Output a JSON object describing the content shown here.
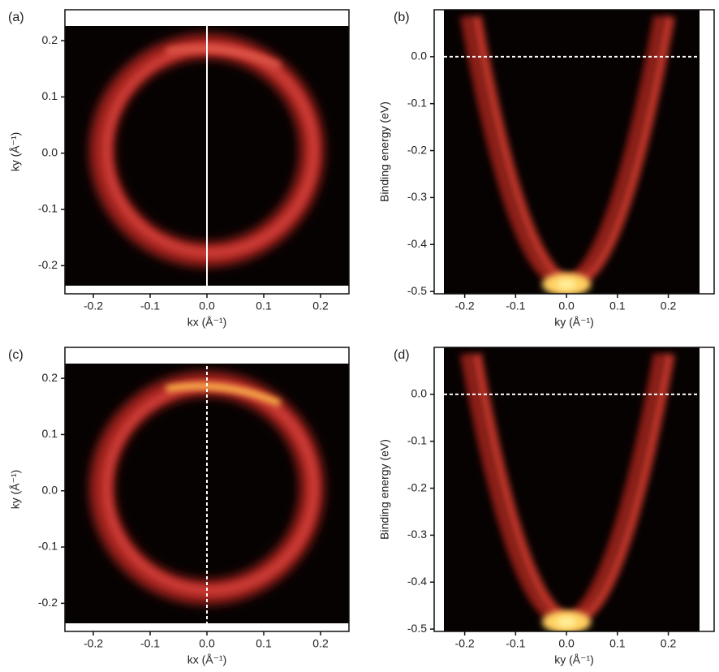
{
  "chart_data": [
    {
      "type": "map",
      "panel": "(a)",
      "xlabel": "kx (Å⁻¹)",
      "ylabel": "ky (Å⁻¹)",
      "xlim": [
        -0.25,
        0.25
      ],
      "ylim": [
        -0.25,
        0.255
      ],
      "xticks": [
        -0.2,
        -0.1,
        {
          "value": 0,
          "label": "0.0"
        },
        0.1,
        0.2
      ],
      "yticks": [
        -0.2,
        -0.1,
        {
          "value": 0,
          "label": "0.0"
        },
        0.1,
        0.2
      ],
      "ref_line": {
        "axis": "x",
        "value": 0,
        "style": "solid"
      }
    },
    {
      "type": "dispersion",
      "panel": "(b)",
      "xlabel": "ky (Å⁻¹)",
      "ylabel": "Binding energy (eV)",
      "xlim": [
        -0.26,
        0.29
      ],
      "ylim": [
        -0.505,
        0.1
      ],
      "xticks": [
        -0.2,
        -0.1,
        {
          "value": 0,
          "label": "0.0"
        },
        0.1,
        0.2
      ],
      "yticks": [
        -0.5,
        -0.4,
        -0.3,
        -0.2,
        -0.1,
        {
          "value": 0,
          "label": "0.0"
        }
      ],
      "ref_line": {
        "axis": "y",
        "value": 0,
        "style": "dashed"
      }
    },
    {
      "type": "map",
      "panel": "(c)",
      "xlabel": "kx (Å⁻¹)",
      "ylabel": "ky (Å⁻¹)",
      "xlim": [
        -0.25,
        0.25
      ],
      "ylim": [
        -0.25,
        0.255
      ],
      "xticks": [
        -0.2,
        -0.1,
        {
          "value": 0,
          "label": "0.0"
        },
        0.1,
        0.2
      ],
      "yticks": [
        -0.2,
        -0.1,
        {
          "value": 0,
          "label": "0.0"
        },
        0.1,
        0.2
      ],
      "ref_line": {
        "axis": "x",
        "value": 0,
        "style": "dashed"
      }
    },
    {
      "type": "dispersion",
      "panel": "(d)",
      "xlabel": "ky (Å⁻¹)",
      "ylabel": "Binding energy (eV)",
      "xlim": [
        -0.26,
        0.29
      ],
      "ylim": [
        -0.505,
        0.1
      ],
      "xticks": [
        -0.2,
        -0.1,
        {
          "value": 0,
          "label": "0.0"
        },
        0.1,
        0.2
      ],
      "yticks": [
        -0.5,
        -0.4,
        -0.3,
        -0.2,
        -0.1,
        {
          "value": 0,
          "label": "0.0"
        }
      ],
      "ref_line": {
        "axis": "y",
        "value": 0,
        "style": "dashed"
      }
    }
  ]
}
